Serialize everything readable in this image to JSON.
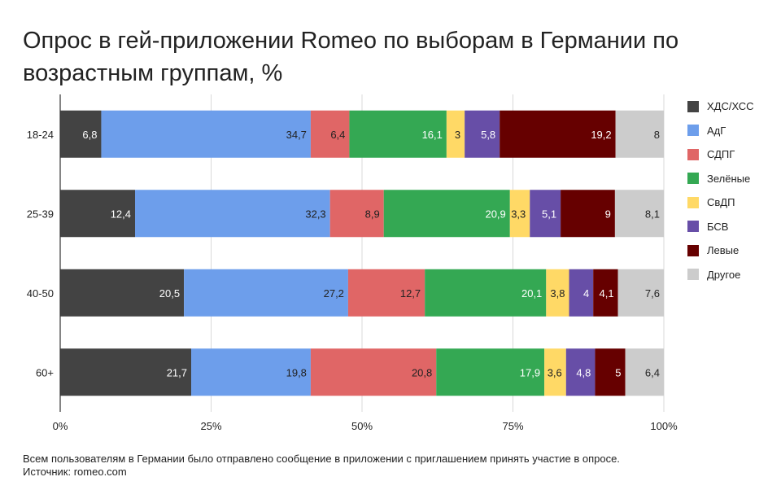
{
  "title": "Опрос в гей-приложении Romeo по выборам в Германии по возрастным группам, %",
  "footnote": {
    "line1": "Всем пользователям в Германии было отправлено сообщение в приложении с приглашением принять участие в опросе.",
    "line2": "Источник: romeo.com"
  },
  "chart_data": {
    "type": "bar",
    "orientation": "horizontal",
    "stacked": true,
    "categories": [
      "18-24",
      "25-39",
      "40-50",
      "60+"
    ],
    "series": [
      {
        "name": "ХДС/ХСС",
        "color": "#434343",
        "label_color": "#ffffff",
        "values": [
          6.8,
          12.4,
          20.5,
          21.7
        ],
        "labels": [
          "6,8",
          "12,4",
          "20,5",
          "21,7"
        ]
      },
      {
        "name": "АдГ",
        "color": "#6d9eeb",
        "label_color": "#222222",
        "values": [
          34.7,
          32.3,
          27.2,
          19.8
        ],
        "labels": [
          "34,7",
          "32,3",
          "27,2",
          "19,8"
        ]
      },
      {
        "name": "СДПГ",
        "color": "#e06666",
        "label_color": "#222222",
        "values": [
          6.4,
          8.9,
          12.7,
          20.8
        ],
        "labels": [
          "6,4",
          "8,9",
          "12,7",
          "20,8"
        ]
      },
      {
        "name": "Зелёные",
        "color": "#34a853",
        "label_color": "#ffffff",
        "values": [
          16.1,
          20.9,
          20.1,
          17.9
        ],
        "labels": [
          "16,1",
          "20,9",
          "20,1",
          "17,9"
        ]
      },
      {
        "name": "СвДП",
        "color": "#ffd966",
        "label_color": "#222222",
        "values": [
          3,
          3.3,
          3.8,
          3.6
        ],
        "labels": [
          "3",
          "3,3",
          "3,8",
          "3,6"
        ]
      },
      {
        "name": "БСВ",
        "color": "#674ea7",
        "label_color": "#ffffff",
        "values": [
          5.8,
          5.1,
          4,
          4.8
        ],
        "labels": [
          "5,8",
          "5,1",
          "4",
          "4,8"
        ]
      },
      {
        "name": "Левые",
        "color": "#660000",
        "label_color": "#ffffff",
        "values": [
          19.2,
          9,
          4.1,
          5
        ],
        "labels": [
          "19,2",
          "9",
          "4,1",
          "5"
        ]
      },
      {
        "name": "Другое",
        "color": "#cccccc",
        "label_color": "#222222",
        "values": [
          8,
          8.1,
          7.6,
          6.4
        ],
        "labels": [
          "8",
          "8,1",
          "7,6",
          "6,4"
        ]
      }
    ],
    "xlim": [
      0,
      100
    ],
    "xticks": [
      0,
      25,
      50,
      75,
      100
    ],
    "xtick_labels": [
      "0%",
      "25%",
      "50%",
      "75%",
      "100%"
    ],
    "grid": true,
    "legend_position": "right"
  }
}
